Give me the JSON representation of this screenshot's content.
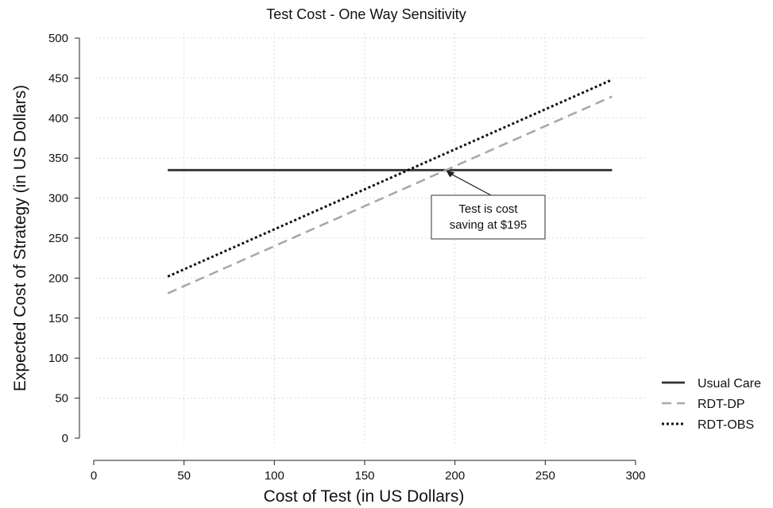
{
  "chart_data": {
    "type": "line",
    "title": "Test Cost - One Way Sensitivity",
    "xlabel": "Cost of Test (in US Dollars)",
    "ylabel": "Expected Cost of Strategy (in US Dollars)",
    "xlim": [
      0,
      300
    ],
    "ylim": [
      0,
      500
    ],
    "xticks": [
      0,
      50,
      100,
      150,
      200,
      250,
      300
    ],
    "yticks": [
      0,
      50,
      100,
      150,
      200,
      250,
      300,
      350,
      400,
      450,
      500
    ],
    "grid": true,
    "legend_position": "right",
    "series": [
      {
        "name": "Usual Care",
        "style": "solid",
        "color": "#333333",
        "x": [
          41,
          287
        ],
        "y": [
          335,
          335
        ]
      },
      {
        "name": "RDT-DP",
        "style": "dashed",
        "color": "#a9a9a9",
        "x": [
          41,
          287
        ],
        "y": [
          181,
          427
        ]
      },
      {
        "name": "RDT-OBS",
        "style": "dotted",
        "color": "#111111",
        "x": [
          41,
          287
        ],
        "y": [
          202,
          448
        ]
      }
    ],
    "annotation": {
      "lines": [
        "Test is cost",
        "saving at $195"
      ],
      "x": 195,
      "y": 335
    }
  }
}
